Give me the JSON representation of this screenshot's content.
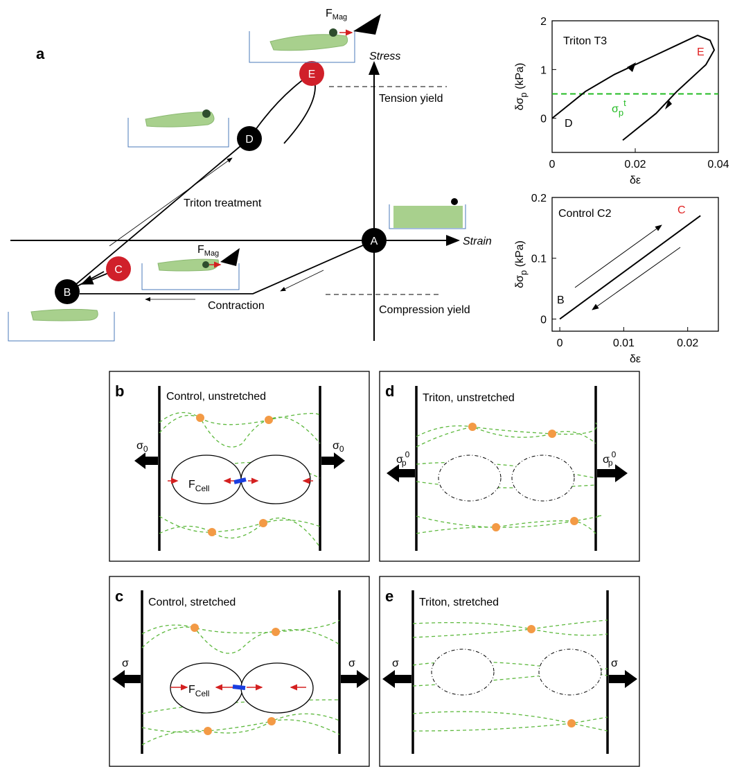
{
  "panel_a": {
    "label": "a",
    "y_axis": "Stress",
    "x_axis": "Strain",
    "nodes": [
      "A",
      "B",
      "C",
      "D",
      "E"
    ],
    "tension_yield": "Tension yield",
    "compression_yield": "Compression yield",
    "triton": "Triton treatment",
    "contraction": "Contraction",
    "force": "F",
    "force_sub": "Mag"
  },
  "chart_data": [
    {
      "type": "line",
      "title": "Triton T3",
      "xlabel": "δε",
      "ylabel": "δσ",
      "ylabel_sub": "p",
      "ylabel_unit": " (kPa)",
      "series": [
        {
          "color": "#000000",
          "x": [
            0,
            0.008,
            0.015,
            0.025,
            0.03,
            0.035,
            0.038,
            0.039,
            0.037,
            0.03,
            0.025,
            0.017
          ],
          "values": [
            0,
            0.55,
            0.9,
            1.3,
            1.5,
            1.7,
            1.6,
            1.4,
            1.1,
            0.55,
            0.1,
            -0.45
          ]
        }
      ],
      "xlim": [
        0,
        0.04
      ],
      "xticks": [
        0,
        0.02,
        0.04
      ],
      "ylim": [
        -0.7,
        2
      ],
      "yticks": [
        0,
        1,
        2
      ],
      "reference_line": {
        "value": 0.5,
        "color": "#22bb22",
        "label": "σ",
        "label_sub": "p",
        "label_sup": "t"
      },
      "annotations": [
        {
          "text": "D",
          "color": "#000000"
        },
        {
          "text": "E",
          "color": "#e02020"
        }
      ]
    },
    {
      "type": "line",
      "title": "Control C2",
      "xlabel": "δε",
      "ylabel": "δσ",
      "ylabel_sub": "p",
      "ylabel_unit": " (kPa)",
      "series": [
        {
          "color": "#000000",
          "x": [
            0,
            0.022
          ],
          "values": [
            0,
            0.17
          ]
        }
      ],
      "xlim": [
        -0.0012,
        0.0248
      ],
      "xticks": [
        0,
        0.01,
        0.02
      ],
      "ylim": [
        -0.02,
        0.2
      ],
      "yticks": [
        0,
        0.1,
        0.2
      ],
      "annotations": [
        {
          "text": "B",
          "color": "#000000"
        },
        {
          "text": "C",
          "color": "#e02020"
        }
      ]
    }
  ],
  "panels": [
    {
      "label": "b",
      "title": "Control, unstretched",
      "stress": "σ",
      "stress_sub": "0",
      "force": "F",
      "force_sub": "Cell"
    },
    {
      "label": "d",
      "title": "Triton, unstretched",
      "stress": "σ",
      "stress_sub": "p",
      "stress_sup": "0"
    },
    {
      "label": "c",
      "title": "Control, stretched",
      "stress": "σ",
      "force": "F",
      "force_sub": "Cell"
    },
    {
      "label": "e",
      "title": "Triton, stretched",
      "stress": "σ"
    }
  ]
}
